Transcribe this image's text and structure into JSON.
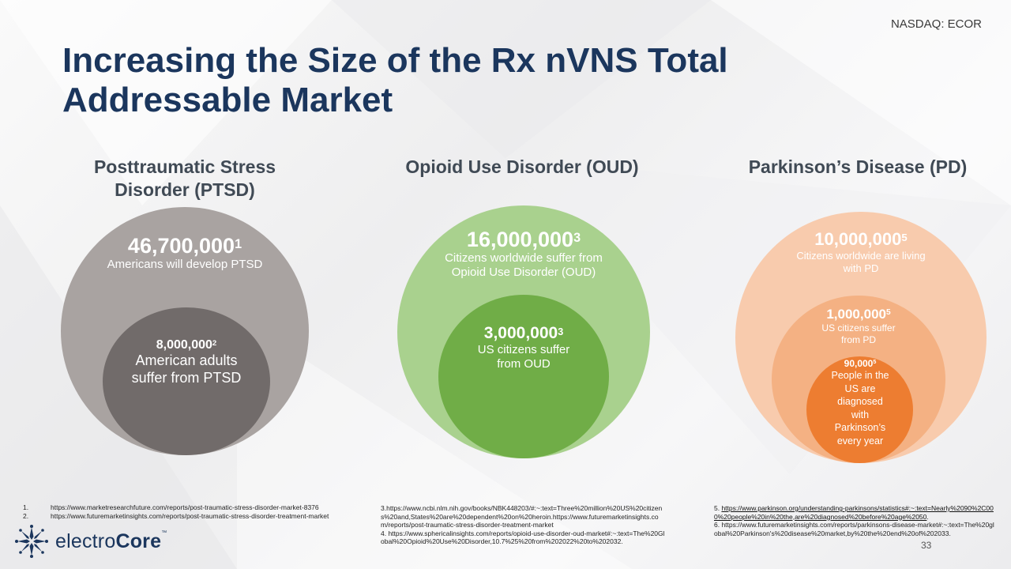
{
  "ticker": "NASDAQ: ECOR",
  "title": "Increasing the Size of the Rx nVNS Total Addressable Market",
  "colors": {
    "title": "#1b365d",
    "ptsd_outer": "#a9a3a1",
    "ptsd_inner": "#716b6a",
    "oud_outer": "#a9d18e",
    "oud_inner": "#70ad47",
    "pd_outer": "#f8cbad",
    "pd_mid": "#f4b183",
    "pd_inner": "#ed7d31"
  },
  "columns": {
    "ptsd": {
      "heading": "Posttraumatic Stress Disorder (PTSD)",
      "outer": {
        "value": "46,700,000",
        "ref": "1",
        "desc": "Americans will develop PTSD"
      },
      "inner": {
        "value": "8,000,000",
        "ref": "2",
        "desc": "American adults suffer from PTSD"
      }
    },
    "oud": {
      "heading": "Opioid Use Disorder (OUD)",
      "outer": {
        "value": "16,000,000",
        "ref": "3",
        "desc": "Citizens worldwide suffer from Opioid Use Disorder (OUD)"
      },
      "inner": {
        "value": "3,000,000",
        "ref": "3",
        "desc": "US citizens suffer from OUD"
      }
    },
    "pd": {
      "heading": "Parkinson’s Disease (PD)",
      "outer": {
        "value": "10,000,000",
        "ref": "5",
        "desc": "Citizens worldwide are living with PD"
      },
      "mid": {
        "value": "1,000,000",
        "ref": "5",
        "desc": "US citizens suffer from PD"
      },
      "inner": {
        "value": "90,000",
        "ref": "5",
        "desc": "People in the US are diagnosed with Parkinson’s every year"
      }
    }
  },
  "footnotes": {
    "list": [
      {
        "num": "1.",
        "url": "https://www.marketresearchfuture.com/reports/post-traumatic-stress-disorder-market-8376"
      },
      {
        "num": "2.",
        "url": "https://www.futuremarketinsights.com/reports/post-traumatic-stress-disorder-treatment-market"
      }
    ],
    "mid": "3.https://www.ncbi.nlm.nih.gov/books/NBK448203/#:~:text=Three%20million%20US%20citizens%20and,States%20are%20dependent%20on%20heroin.https://www.futuremarketinsights.com/reports/post-traumatic-stress-disorder-treatment-market",
    "mid2": "4. https://www.sphericalinsights.com/reports/opioid-use-disorder-oud-market#:~:text=The%20Global%20Opioid%20Use%20Disorder,10.7%25%20from%202022%20to%202032.",
    "right_num": "5. ",
    "right_url": "https://www.parkinson.org/understanding-parkinsons/statistics#:~:text=Nearly%2090%2C000%20people%20in%20the,are%20diagnosed%20before%20age%2050",
    "right_end": ".",
    "right2": "6. https://www.futuremarketinsights.com/reports/parkinsons-disease-market#:~:text=The%20global%20Parkinson's%20disease%20market,by%20the%20end%20of%202033."
  },
  "logo": {
    "prefix": "electro",
    "bold": "Core",
    "tm": "™"
  },
  "page_number": "33"
}
